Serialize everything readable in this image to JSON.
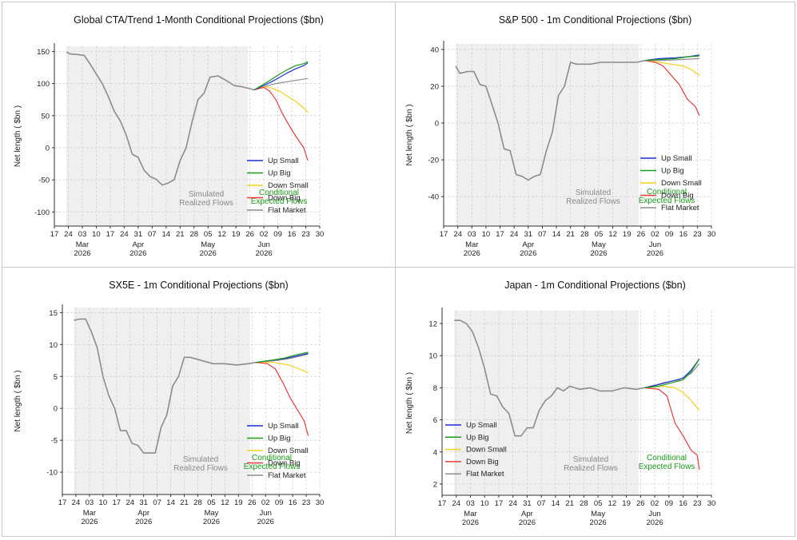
{
  "chart_data": [
    {
      "type": "line",
      "title": "Global CTA/Trend 1-Month Conditional Projections ($bn)",
      "ylabel": "Net length ( $bn )",
      "ylim": [
        -122,
        158
      ],
      "yticks": [
        150,
        100,
        50,
        0,
        -50,
        -100
      ],
      "xlim": [
        "2026-02-17",
        "2026-06-30"
      ],
      "x_tick_labels": [
        "17",
        "24",
        "03",
        "10",
        "17",
        "24",
        "31",
        "07",
        "14",
        "21",
        "28",
        "05",
        "12",
        "19",
        "26",
        "02",
        "09",
        "16",
        "23",
        "30"
      ],
      "month_labels": [
        {
          "month": "Mar",
          "year": "2026",
          "at": "2026-03-03"
        },
        {
          "month": "Apr",
          "year": "2026",
          "at": "2026-03-31"
        },
        {
          "month": "May",
          "year": "2026",
          "at": "2026-05-05"
        },
        {
          "month": "Jun",
          "year": "2026",
          "at": "2026-06-02"
        }
      ],
      "shaded_region": {
        "from": "2026-02-23",
        "to": "2026-05-25",
        "label_lines": [
          "Simulated",
          "Realized Flows"
        ]
      },
      "conditional_label_lines": [
        "Conditional",
        "Expected Flows"
      ],
      "grid": true,
      "legend_position": "bottom-right",
      "history": {
        "x": [
          "2026-02-23",
          "2026-02-25",
          "2026-03-01",
          "2026-03-04",
          "2026-03-07",
          "2026-03-10",
          "2026-03-13",
          "2026-03-16",
          "2026-03-19",
          "2026-03-22",
          "2026-03-25",
          "2026-03-28",
          "2026-03-31",
          "2026-04-03",
          "2026-04-06",
          "2026-04-09",
          "2026-04-12",
          "2026-04-15",
          "2026-04-18",
          "2026-04-21",
          "2026-04-24",
          "2026-04-27",
          "2026-04-30",
          "2026-05-03",
          "2026-05-06",
          "2026-05-10",
          "2026-05-14",
          "2026-05-18",
          "2026-05-22",
          "2026-05-26",
          "2026-05-28"
        ],
        "y": [
          149,
          146,
          145,
          144,
          130,
          115,
          100,
          80,
          57,
          42,
          20,
          -10,
          -15,
          -35,
          -45,
          -49,
          -58,
          -55,
          -50,
          -20,
          0,
          40,
          75,
          85,
          110,
          112,
          105,
          97,
          95,
          92,
          90
        ]
      },
      "series": [
        {
          "name": "Up Small",
          "color": "#1a2fd0",
          "x": [
            "2026-05-28",
            "2026-06-02",
            "2026-06-06",
            "2026-06-10",
            "2026-06-14",
            "2026-06-18",
            "2026-06-22",
            "2026-06-24"
          ],
          "y": [
            90,
            97,
            103,
            110,
            117,
            123,
            128,
            132
          ]
        },
        {
          "name": "Up Big",
          "color": "#1a9a1a",
          "x": [
            "2026-05-28",
            "2026-06-02",
            "2026-06-06",
            "2026-06-10",
            "2026-06-14",
            "2026-06-18",
            "2026-06-22",
            "2026-06-24"
          ],
          "y": [
            90,
            99,
            107,
            115,
            122,
            128,
            131,
            134
          ]
        },
        {
          "name": "Down Small",
          "color": "#f2d21b",
          "x": [
            "2026-05-28",
            "2026-06-02",
            "2026-06-06",
            "2026-06-10",
            "2026-06-14",
            "2026-06-18",
            "2026-06-22",
            "2026-06-24"
          ],
          "y": [
            90,
            95,
            93,
            88,
            80,
            72,
            62,
            55
          ]
        },
        {
          "name": "Down Big",
          "color": "#e63c3c",
          "x": [
            "2026-05-28",
            "2026-06-02",
            "2026-06-05",
            "2026-06-08",
            "2026-06-11",
            "2026-06-14",
            "2026-06-18",
            "2026-06-22",
            "2026-06-24"
          ],
          "y": [
            90,
            94,
            88,
            75,
            55,
            38,
            18,
            0,
            -20
          ]
        },
        {
          "name": "Flat Market",
          "color": "#8c8c8c",
          "x": [
            "2026-05-28",
            "2026-06-02",
            "2026-06-08",
            "2026-06-14",
            "2026-06-20",
            "2026-06-24"
          ],
          "y": [
            90,
            95,
            100,
            103,
            106,
            108
          ]
        }
      ]
    },
    {
      "type": "line",
      "title": "S&P 500 - 1m Conditional Projections ($bn)",
      "ylabel": "Net length ( $bn )",
      "ylim": [
        -56,
        43
      ],
      "yticks": [
        40,
        20,
        0,
        -20,
        -40
      ],
      "xlim": [
        "2026-02-17",
        "2026-06-30"
      ],
      "x_tick_labels": [
        "17",
        "24",
        "03",
        "10",
        "17",
        "24",
        "31",
        "07",
        "14",
        "21",
        "28",
        "05",
        "12",
        "19",
        "26",
        "02",
        "09",
        "16",
        "23",
        "30"
      ],
      "month_labels": [
        {
          "month": "Mar",
          "year": "2026",
          "at": "2026-03-03"
        },
        {
          "month": "Apr",
          "year": "2026",
          "at": "2026-03-31"
        },
        {
          "month": "May",
          "year": "2026",
          "at": "2026-05-05"
        },
        {
          "month": "Jun",
          "year": "2026",
          "at": "2026-06-02"
        }
      ],
      "shaded_region": {
        "from": "2026-02-23",
        "to": "2026-05-25",
        "label_lines": [
          "Simulated",
          "Realized Flows"
        ]
      },
      "conditional_label_lines": [
        "Conditional",
        "Expected Flows"
      ],
      "grid": true,
      "legend_position": "bottom-right",
      "history": {
        "x": [
          "2026-02-23",
          "2026-02-25",
          "2026-03-01",
          "2026-03-04",
          "2026-03-07",
          "2026-03-10",
          "2026-03-13",
          "2026-03-16",
          "2026-03-19",
          "2026-03-22",
          "2026-03-25",
          "2026-03-28",
          "2026-03-31",
          "2026-04-03",
          "2026-04-06",
          "2026-04-09",
          "2026-04-12",
          "2026-04-15",
          "2026-04-18",
          "2026-04-21",
          "2026-04-24",
          "2026-04-27",
          "2026-05-01",
          "2026-05-06",
          "2026-05-12",
          "2026-05-18",
          "2026-05-24",
          "2026-05-28"
        ],
        "y": [
          31,
          27,
          28,
          28,
          21,
          20,
          10,
          0,
          -14,
          -15,
          -28,
          -29,
          -31,
          -29,
          -28,
          -15,
          -5,
          15,
          20,
          33,
          32,
          32,
          32,
          33,
          33,
          33,
          33,
          34
        ]
      },
      "series": [
        {
          "name": "Up Small",
          "color": "#1a2fd0",
          "x": [
            "2026-05-28",
            "2026-06-04",
            "2026-06-12",
            "2026-06-18",
            "2026-06-24"
          ],
          "y": [
            34,
            35,
            35.5,
            36,
            37
          ]
        },
        {
          "name": "Up Big",
          "color": "#1a9a1a",
          "x": [
            "2026-05-28",
            "2026-06-04",
            "2026-06-12",
            "2026-06-18",
            "2026-06-24"
          ],
          "y": [
            34,
            34.5,
            35,
            36,
            36.5
          ]
        },
        {
          "name": "Down Small",
          "color": "#f2d21b",
          "x": [
            "2026-05-28",
            "2026-06-04",
            "2026-06-10",
            "2026-06-16",
            "2026-06-20",
            "2026-06-24"
          ],
          "y": [
            34,
            33,
            32,
            31,
            29,
            26
          ]
        },
        {
          "name": "Down Big",
          "color": "#e63c3c",
          "x": [
            "2026-05-28",
            "2026-06-02",
            "2026-06-06",
            "2026-06-10",
            "2026-06-14",
            "2026-06-18",
            "2026-06-22",
            "2026-06-24"
          ],
          "y": [
            34,
            33,
            31,
            26,
            21,
            13,
            9,
            4
          ]
        },
        {
          "name": "Flat Market",
          "color": "#8c8c8c",
          "x": [
            "2026-05-28",
            "2026-06-06",
            "2026-06-14",
            "2026-06-24"
          ],
          "y": [
            34,
            34,
            34.5,
            35
          ]
        }
      ]
    },
    {
      "type": "line",
      "title": "SX5E - 1m Conditional Projections ($bn)",
      "ylabel": "Net length ( $bn )",
      "ylim": [
        -13.5,
        15.8
      ],
      "yticks": [
        15,
        10,
        5,
        0,
        -5,
        -10
      ],
      "xlim": [
        "2026-02-17",
        "2026-06-30"
      ],
      "x_tick_labels": [
        "17",
        "24",
        "03",
        "10",
        "17",
        "24",
        "31",
        "07",
        "14",
        "21",
        "28",
        "05",
        "12",
        "19",
        "26",
        "02",
        "09",
        "16",
        "23",
        "30"
      ],
      "month_labels": [
        {
          "month": "Mar",
          "year": "2026",
          "at": "2026-03-03"
        },
        {
          "month": "Apr",
          "year": "2026",
          "at": "2026-03-31"
        },
        {
          "month": "May",
          "year": "2026",
          "at": "2026-05-05"
        },
        {
          "month": "Jun",
          "year": "2026",
          "at": "2026-06-02"
        }
      ],
      "shaded_region": {
        "from": "2026-02-23",
        "to": "2026-05-25",
        "label_lines": [
          "Simulated",
          "Realized Flows"
        ]
      },
      "conditional_label_lines": [
        "Conditional",
        "Expected Flows"
      ],
      "grid": true,
      "legend_position": "bottom-right",
      "history": {
        "x": [
          "2026-02-23",
          "2026-02-26",
          "2026-03-01",
          "2026-03-04",
          "2026-03-07",
          "2026-03-10",
          "2026-03-13",
          "2026-03-16",
          "2026-03-19",
          "2026-03-22",
          "2026-03-25",
          "2026-03-28",
          "2026-03-31",
          "2026-04-03",
          "2026-04-06",
          "2026-04-09",
          "2026-04-12",
          "2026-04-15",
          "2026-04-18",
          "2026-04-21",
          "2026-04-24",
          "2026-04-30",
          "2026-05-06",
          "2026-05-12",
          "2026-05-18",
          "2026-05-24",
          "2026-05-28"
        ],
        "y": [
          13.8,
          14,
          14,
          12,
          9.5,
          5,
          2,
          0,
          -3.5,
          -3.5,
          -5.5,
          -5.8,
          -7,
          -7,
          -7,
          -3,
          -1,
          3.5,
          5,
          8,
          8,
          7.5,
          7,
          7,
          6.8,
          7,
          7.2
        ]
      },
      "series": [
        {
          "name": "Up Small",
          "color": "#1a2fd0",
          "x": [
            "2026-05-28",
            "2026-06-04",
            "2026-06-12",
            "2026-06-18",
            "2026-06-24"
          ],
          "y": [
            7.2,
            7.5,
            7.8,
            8.2,
            8.6
          ]
        },
        {
          "name": "Up Big",
          "color": "#1a9a1a",
          "x": [
            "2026-05-28",
            "2026-06-04",
            "2026-06-12",
            "2026-06-18",
            "2026-06-24"
          ],
          "y": [
            7.2,
            7.5,
            7.9,
            8.4,
            8.8
          ]
        },
        {
          "name": "Down Small",
          "color": "#f2d21b",
          "x": [
            "2026-05-28",
            "2026-06-06",
            "2026-06-14",
            "2026-06-20",
            "2026-06-24"
          ],
          "y": [
            7.2,
            7.2,
            6.8,
            6.1,
            5.6
          ]
        },
        {
          "name": "Down Big",
          "color": "#e63c3c",
          "x": [
            "2026-05-28",
            "2026-06-03",
            "2026-06-07",
            "2026-06-11",
            "2026-06-15",
            "2026-06-19",
            "2026-06-22",
            "2026-06-24"
          ],
          "y": [
            7.2,
            7,
            6.2,
            4,
            1.5,
            -0.5,
            -2,
            -4.3
          ]
        },
        {
          "name": "Flat Market",
          "color": "#8c8c8c",
          "x": [
            "2026-05-28",
            "2026-06-08",
            "2026-06-16",
            "2026-06-24"
          ],
          "y": [
            7.2,
            7.5,
            7.9,
            8.5
          ]
        }
      ]
    },
    {
      "type": "line",
      "title": "Japan - 1m Conditional Projections ($bn)",
      "ylabel": "Net length ( $bn )",
      "ylim": [
        1.3,
        12.8
      ],
      "yticks": [
        12,
        10,
        8,
        6,
        4,
        2
      ],
      "xlim": [
        "2026-02-17",
        "2026-06-30"
      ],
      "x_tick_labels": [
        "17",
        "24",
        "03",
        "10",
        "17",
        "24",
        "31",
        "07",
        "14",
        "21",
        "28",
        "05",
        "12",
        "19",
        "26",
        "02",
        "09",
        "16",
        "23",
        "30"
      ],
      "month_labels": [
        {
          "month": "Mar",
          "year": "2026",
          "at": "2026-03-03"
        },
        {
          "month": "Apr",
          "year": "2026",
          "at": "2026-03-31"
        },
        {
          "month": "May",
          "year": "2026",
          "at": "2026-05-05"
        },
        {
          "month": "Jun",
          "year": "2026",
          "at": "2026-06-02"
        }
      ],
      "shaded_region": {
        "from": "2026-02-23",
        "to": "2026-05-25",
        "label_lines": [
          "Simulated",
          "Realized Flows"
        ]
      },
      "conditional_label_lines": [
        "Conditional",
        "Expected Flows"
      ],
      "grid": true,
      "legend_position": "bottom-left",
      "history": {
        "x": [
          "2026-02-23",
          "2026-02-26",
          "2026-03-01",
          "2026-03-04",
          "2026-03-07",
          "2026-03-10",
          "2026-03-13",
          "2026-03-16",
          "2026-03-19",
          "2026-03-22",
          "2026-03-25",
          "2026-03-28",
          "2026-03-31",
          "2026-04-03",
          "2026-04-06",
          "2026-04-09",
          "2026-04-12",
          "2026-04-15",
          "2026-04-18",
          "2026-04-21",
          "2026-04-26",
          "2026-05-01",
          "2026-05-06",
          "2026-05-12",
          "2026-05-18",
          "2026-05-24",
          "2026-05-28"
        ],
        "y": [
          12.2,
          12.2,
          12,
          11.5,
          10.5,
          9.2,
          7.6,
          7.5,
          6.8,
          6.4,
          5,
          5,
          5.5,
          5.5,
          6.6,
          7.2,
          7.5,
          8,
          7.8,
          8.1,
          7.9,
          8,
          7.8,
          7.8,
          8,
          7.9,
          8
        ]
      },
      "series": [
        {
          "name": "Up Small",
          "color": "#1a2fd0",
          "x": [
            "2026-05-28",
            "2026-06-04",
            "2026-06-10",
            "2026-06-16",
            "2026-06-20",
            "2026-06-24"
          ],
          "y": [
            8,
            8.2,
            8.4,
            8.6,
            9.1,
            9.8
          ]
        },
        {
          "name": "Up Big",
          "color": "#1a9a1a",
          "x": [
            "2026-05-28",
            "2026-06-04",
            "2026-06-10",
            "2026-06-16",
            "2026-06-20",
            "2026-06-24"
          ],
          "y": [
            8,
            8.1,
            8.3,
            8.5,
            9,
            9.8
          ]
        },
        {
          "name": "Down Small",
          "color": "#f2d21b",
          "x": [
            "2026-05-28",
            "2026-06-06",
            "2026-06-12",
            "2026-06-16",
            "2026-06-20",
            "2026-06-24"
          ],
          "y": [
            8,
            8.1,
            8,
            7.7,
            7.2,
            6.6
          ]
        },
        {
          "name": "Down Big",
          "color": "#e63c3c",
          "x": [
            "2026-05-28",
            "2026-06-04",
            "2026-06-08",
            "2026-06-12",
            "2026-06-16",
            "2026-06-20",
            "2026-06-23",
            "2026-06-24"
          ],
          "y": [
            8,
            7.9,
            7.5,
            5.8,
            5,
            4.1,
            3.8,
            2.9
          ]
        },
        {
          "name": "Flat Market",
          "color": "#8c8c8c",
          "x": [
            "2026-05-28",
            "2026-06-06",
            "2026-06-14",
            "2026-06-20",
            "2026-06-24"
          ],
          "y": [
            8,
            8.3,
            8.5,
            8.9,
            9.5
          ]
        }
      ]
    }
  ]
}
